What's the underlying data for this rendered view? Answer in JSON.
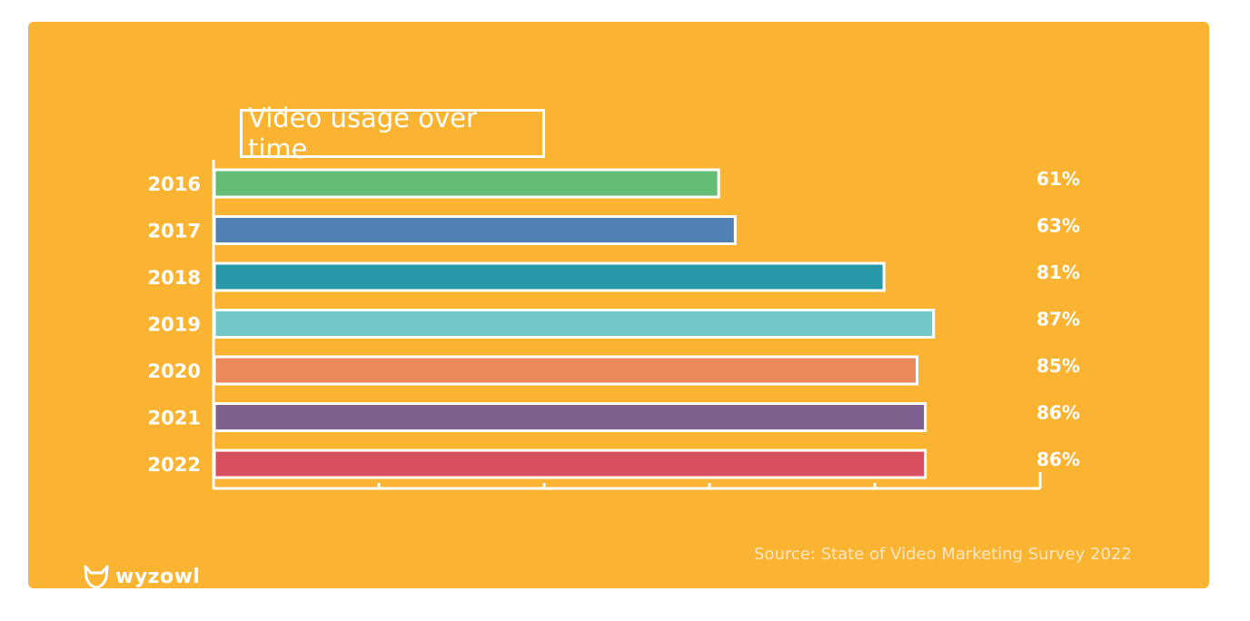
{
  "brand": {
    "name": "wyzowl",
    "icon": "fox-icon",
    "background_color": "#fbb431"
  },
  "source": "Source: State of Video Marketing Survey 2022",
  "chart_data": {
    "type": "bar",
    "orientation": "horizontal",
    "title": "Video usage over time",
    "xlabel": "",
    "ylabel": "",
    "xlim": [
      0,
      100
    ],
    "grid": false,
    "legend": "none",
    "categories": [
      "2016",
      "2017",
      "2018",
      "2019",
      "2020",
      "2021",
      "2022"
    ],
    "values": [
      61,
      63,
      81,
      87,
      85,
      86,
      86
    ],
    "value_labels": [
      "61%",
      "63%",
      "81%",
      "87%",
      "85%",
      "86%",
      "86%"
    ],
    "colors": [
      "#63bd75",
      "#5180b3",
      "#2899a9",
      "#72c8c8",
      "#ec8a5b",
      "#7f6190",
      "#d8505f"
    ]
  }
}
